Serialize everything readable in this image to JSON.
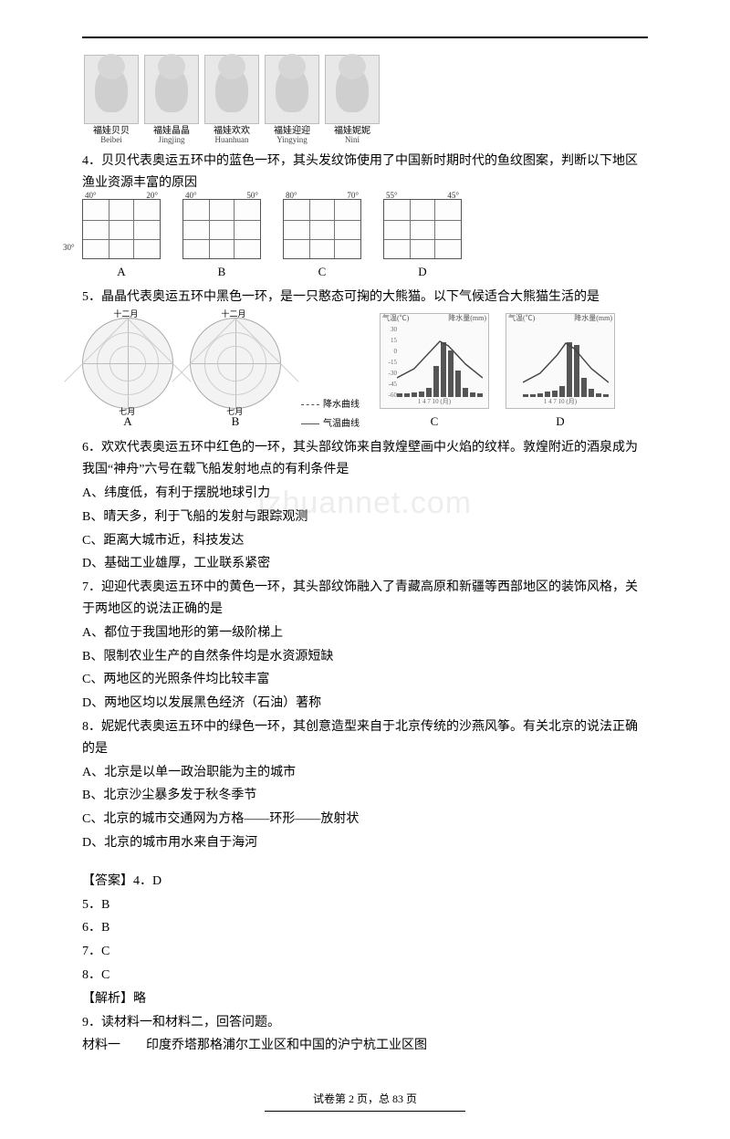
{
  "mascots": [
    {
      "cn": "福娃贝贝",
      "en": "Beibei"
    },
    {
      "cn": "福娃晶晶",
      "en": "Jingjing"
    },
    {
      "cn": "福娃欢欢",
      "en": "Huanhuan"
    },
    {
      "cn": "福娃迎迎",
      "en": "Yingying"
    },
    {
      "cn": "福娃妮妮",
      "en": "Nini"
    }
  ],
  "q4": {
    "text": "4．贝贝代表奥运五环中的蓝色一环，其头发纹饰使用了中国新时期时代的鱼纹图案，判断以下地区渔业资源丰富的原因",
    "maps": [
      {
        "label": "A",
        "tl": "40°",
        "tr": "20°",
        "bl": "30°"
      },
      {
        "label": "B",
        "tl": "40°",
        "tr": "50°",
        "bl": ""
      },
      {
        "label": "C",
        "tl": "80°",
        "tr": "70°",
        "bl": ""
      },
      {
        "label": "D",
        "tl": "55°",
        "tr": "45°",
        "bl": ""
      }
    ]
  },
  "q5": {
    "text": "5．晶晶代表奥运五环中黑色一环，是一只憨态可掬的大熊猫。以下气候适合大熊猫生活的是",
    "polar_title_left": "十二月",
    "polar_title_bottom": "七月",
    "legend_precip": "降水曲线",
    "legend_temp": "气温曲线",
    "polar_labels": [
      "A",
      "B"
    ],
    "climo_left_title_l": "气温(℃)",
    "climo_left_title_r": "降水量(mm)",
    "climo_y": [
      "30",
      "15",
      "0",
      "-15",
      "-30",
      "-45",
      "-60"
    ],
    "climo_x": "1  4  7  10 (月)",
    "climo_labels": [
      "C",
      "D"
    ],
    "barsC": [
      5,
      5,
      6,
      8,
      12,
      40,
      70,
      60,
      34,
      12,
      6,
      5
    ],
    "barsD": [
      3,
      3,
      4,
      5,
      6,
      10,
      50,
      48,
      18,
      8,
      4,
      3
    ]
  },
  "q6": {
    "text": "6．欢欢代表奥运五环中红色的一环，其头部纹饰来自敦煌壁画中火焰的纹样。敦煌附近的酒泉成为我国“神舟”六号在载飞船发射地点的有利条件是",
    "opts": [
      "A、纬度低，有利于摆脱地球引力",
      "B、晴天多，利于飞船的发射与跟踪观测",
      "C、距离大城市近，科技发达",
      "D、基础工业雄厚，工业联系紧密"
    ]
  },
  "q7": {
    "text": "7．迎迎代表奥运五环中的黄色一环，其头部纹饰融入了青藏高原和新疆等西部地区的装饰风格，关于两地区的说法正确的是",
    "opts": [
      "A、都位于我国地形的第一级阶梯上",
      "B、限制农业生产的自然条件均是水资源短缺",
      "C、两地区的光照条件均比较丰富",
      "D、两地区均以发展黑色经济（石油）著称"
    ]
  },
  "q8": {
    "text": "8．妮妮代表奥运五环中的绿色一环，其创意造型来自于北京传统的沙燕风筝。有关北京的说法正确的是",
    "opts": [
      "A、北京是以单一政治职能为主的城市",
      "B、北京沙尘暴多发于秋冬季节",
      "C、北京的城市交通网为方格——环形——放射状",
      "D、北京的城市用水来自于海河"
    ]
  },
  "answers": {
    "header": "【答案】4．D",
    "a5": "5．B",
    "a6": "6．B",
    "a7": "7．C",
    "a8": "8．C"
  },
  "explain": "【解析】略",
  "q9": {
    "text": "9．读材料一和材料二，回答问题。",
    "mat1": "材料一　　印度乔塔那格浦尔工业区和中国的沪宁杭工业区图"
  },
  "watermark": "izhuannet.com",
  "footer": {
    "left": "试卷第 ",
    "page": "2",
    "mid": " 页，总 ",
    "total": "83",
    "right": " 页"
  }
}
